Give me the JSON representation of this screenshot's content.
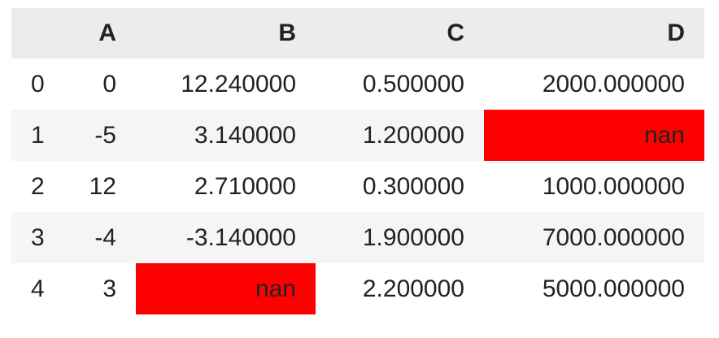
{
  "table": {
    "columns": [
      "A",
      "B",
      "C",
      "D"
    ],
    "index": [
      "0",
      "1",
      "2",
      "3",
      "4"
    ],
    "rows": [
      [
        "0",
        "12.240000",
        "0.500000",
        "2000.000000"
      ],
      [
        "-5",
        "3.140000",
        "1.200000",
        null
      ],
      [
        "12",
        "2.710000",
        "0.300000",
        "1000.000000"
      ],
      [
        "-4",
        "-3.140000",
        "1.900000",
        "7000.000000"
      ],
      [
        "3",
        null,
        "2.200000",
        "5000.000000"
      ]
    ],
    "na_rep": "nan",
    "highlight_null": "#ff0000"
  }
}
